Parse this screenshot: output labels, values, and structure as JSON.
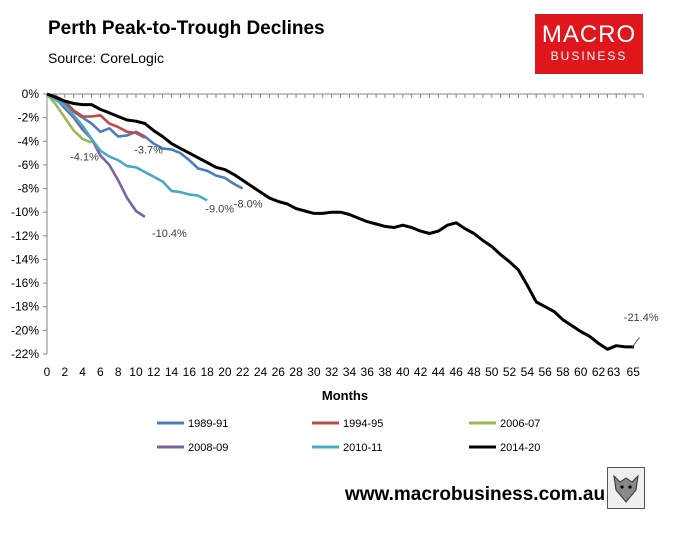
{
  "header": {
    "title": "Perth Peak-to-Trough Declines",
    "source": "Source: CoreLogic"
  },
  "logo": {
    "line1": "MACRO",
    "line2": "BUSINESS",
    "color": "#e0161d"
  },
  "footer": {
    "website": "www.macrobusiness.com.au",
    "badge_icon": "wolf-icon"
  },
  "chart_data": {
    "type": "line",
    "title": "Perth Peak-to-Trough Declines",
    "xlabel": "Months",
    "ylabel": "",
    "xlim": [
      0,
      67
    ],
    "ylim": [
      -22,
      0
    ],
    "x_ticks": [
      "0",
      "2",
      "4",
      "6",
      "8",
      "10",
      "12",
      "14",
      "16",
      "18",
      "20",
      "22",
      "24",
      "26",
      "28",
      "30",
      "32",
      "34",
      "36",
      "38",
      "40",
      "42",
      "44",
      "46",
      "48",
      "50",
      "52",
      "54",
      "56",
      "58",
      "60",
      "62",
      "63",
      "65"
    ],
    "y_ticks": [
      "0%",
      "-2%",
      "-4%",
      "-6%",
      "-8%",
      "-10%",
      "-12%",
      "-14%",
      "-16%",
      "-18%",
      "-20%",
      "-22%"
    ],
    "series": [
      {
        "name": "1989-91",
        "color": "#4a7ebb",
        "label": "-8.0%",
        "values": [
          0,
          -0.3,
          -0.8,
          -1.5,
          -2.0,
          -2.5,
          -3.2,
          -2.9,
          -3.6,
          -3.5,
          -3.2,
          -3.6,
          -4.2,
          -4.6,
          -4.7,
          -5.0,
          -5.6,
          -6.3,
          -6.5,
          -6.9,
          -7.1,
          -7.6,
          -8.0
        ]
      },
      {
        "name": "1994-95",
        "color": "#be4b48",
        "label": "-3.7%",
        "values": [
          0,
          -0.2,
          -0.6,
          -1.4,
          -1.9,
          -1.9,
          -1.8,
          -2.5,
          -2.8,
          -3.2,
          -3.3,
          -3.7
        ]
      },
      {
        "name": "2006-07",
        "color": "#98b954",
        "label": "-4.1%",
        "values": [
          0,
          -0.9,
          -2.0,
          -3.1,
          -3.8,
          -4.1
        ]
      },
      {
        "name": "2008-09",
        "color": "#7d60a0",
        "label": "-10.4%",
        "values": [
          0,
          -0.4,
          -1.2,
          -2.0,
          -3.0,
          -3.8,
          -5.2,
          -6.0,
          -7.3,
          -8.8,
          -9.9,
          -10.4
        ]
      },
      {
        "name": "2010-11",
        "color": "#46aac5",
        "label": "-9.0%",
        "values": [
          0,
          -0.5,
          -1.0,
          -1.8,
          -2.7,
          -3.8,
          -4.8,
          -5.3,
          -5.6,
          -6.1,
          -6.2,
          -6.6,
          -7.0,
          -7.4,
          -8.2,
          -8.3,
          -8.5,
          -8.6,
          -9.0
        ]
      },
      {
        "name": "2014-20",
        "color": "#000000",
        "label": "-21.4%",
        "values": [
          0,
          -0.3,
          -0.6,
          -0.8,
          -0.9,
          -0.9,
          -1.3,
          -1.6,
          -1.9,
          -2.2,
          -2.3,
          -2.5,
          -3.1,
          -3.6,
          -4.2,
          -4.6,
          -5.0,
          -5.4,
          -5.8,
          -6.2,
          -6.4,
          -6.8,
          -7.3,
          -7.8,
          -8.3,
          -8.8,
          -9.1,
          -9.3,
          -9.7,
          -9.9,
          -10.1,
          -10.1,
          -10.0,
          -10.0,
          -10.2,
          -10.5,
          -10.8,
          -11.0,
          -11.2,
          -11.3,
          -11.1,
          -11.3,
          -11.6,
          -11.8,
          -11.6,
          -11.1,
          -10.9,
          -11.4,
          -11.8,
          -12.4,
          -12.9,
          -13.6,
          -14.2,
          -14.9,
          -16.2,
          -17.6,
          -18.0,
          -18.4,
          -19.1,
          -19.6,
          -20.1,
          -20.5,
          -21.1,
          -21.6,
          -21.3,
          -21.4,
          -21.4
        ]
      }
    ],
    "legend": {
      "placement": "bottom",
      "columns": 3
    }
  }
}
